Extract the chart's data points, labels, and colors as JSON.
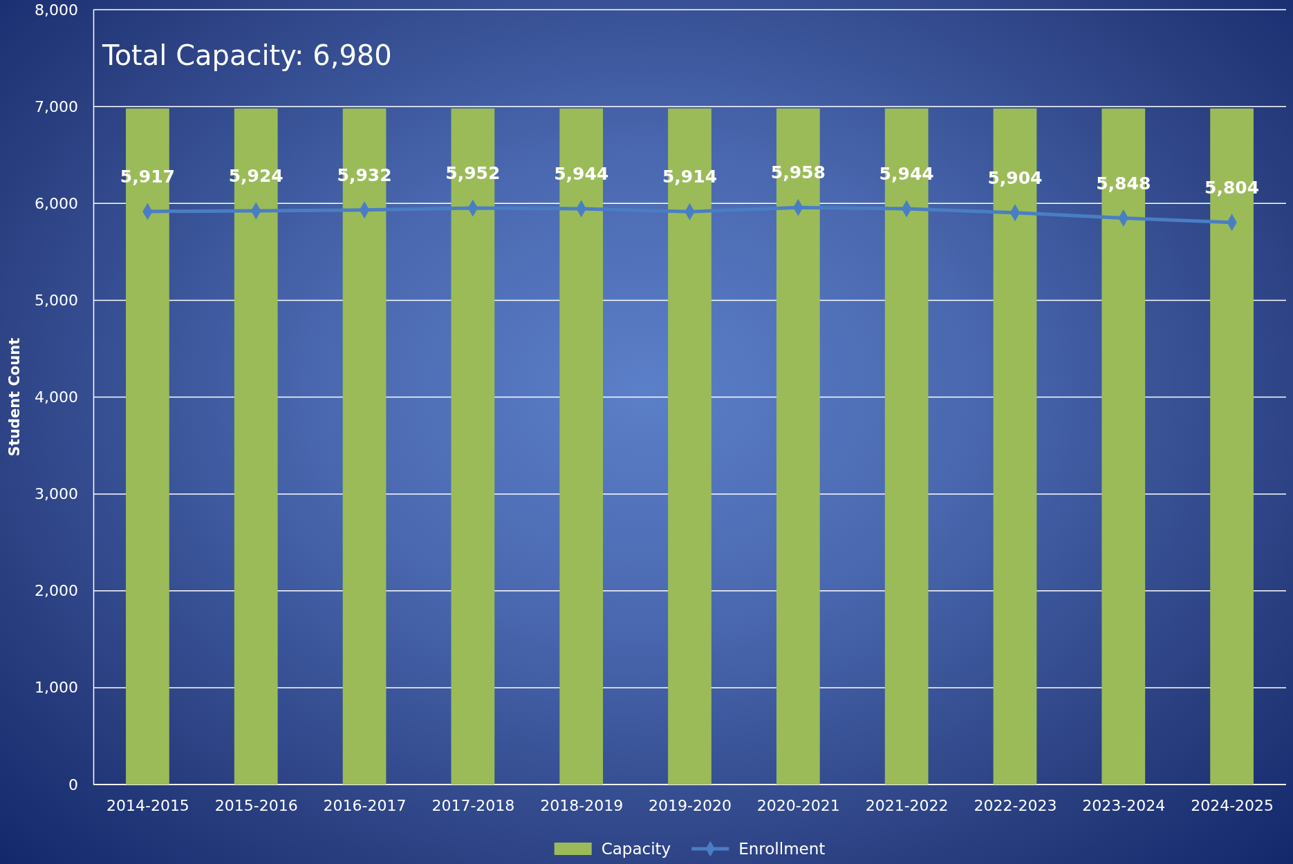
{
  "chart_data": {
    "type": "bar",
    "ylabel": "Student Count",
    "annotations": [
      "Total Capacity: 6,980"
    ],
    "categories": [
      "2014-2015",
      "2015-2016",
      "2016-2017",
      "2017-2018",
      "2018-2019",
      "2019-2020",
      "2020-2021",
      "2021-2022",
      "2022-2023",
      "2023-2024",
      "2024-2025"
    ],
    "series": [
      {
        "name": "Capacity",
        "color": "#9bbb59",
        "values": [
          6980,
          6980,
          6980,
          6980,
          6980,
          6980,
          6980,
          6980,
          6980,
          6980,
          6980
        ]
      },
      {
        "name": "Enrollment",
        "type": "line",
        "color": "#4a7ec4",
        "marker": "diamond",
        "values": [
          5917,
          5924,
          5932,
          5952,
          5944,
          5914,
          5958,
          5944,
          5904,
          5848,
          5804
        ],
        "value_labels": [
          "5,917",
          "5,924",
          "5,932",
          "5,952",
          "5,944",
          "5,914",
          "5,958",
          "5,944",
          "5,904",
          "5,848",
          "5,804"
        ]
      }
    ],
    "ylim": [
      0,
      8000
    ],
    "yticks": [
      {
        "value": 0,
        "label": "0"
      },
      {
        "value": 1000,
        "label": "1,000"
      },
      {
        "value": 2000,
        "label": "2,000"
      },
      {
        "value": 3000,
        "label": "3,000"
      },
      {
        "value": 4000,
        "label": "4,000"
      },
      {
        "value": 5000,
        "label": "5,000"
      },
      {
        "value": 6000,
        "label": "6,000"
      },
      {
        "value": 7000,
        "label": "7,000"
      },
      {
        "value": 8000,
        "label": "8,000"
      }
    ],
    "grid": "y",
    "legend": "bottom"
  }
}
